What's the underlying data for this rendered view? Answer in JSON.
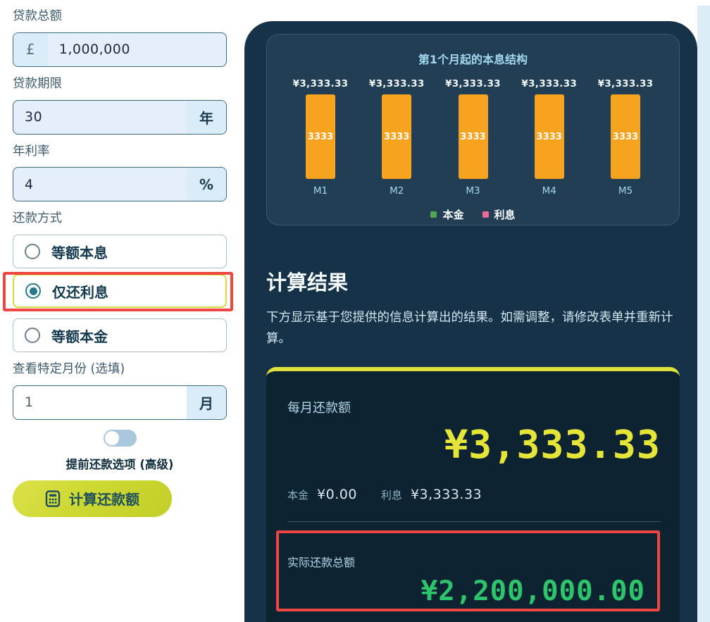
{
  "form": {
    "loan_amount": {
      "label": "贷款总额",
      "prefix": "£",
      "value": "1,000,000"
    },
    "loan_term": {
      "label": "贷款期限",
      "value": "30",
      "suffix": "年"
    },
    "interest_rate": {
      "label": "年利率",
      "value": "4",
      "suffix": "%"
    },
    "repayment_method": {
      "label": "还款方式",
      "options": [
        {
          "label": "等额本息",
          "selected": false
        },
        {
          "label": "仅还利息",
          "selected": true
        },
        {
          "label": "等额本金",
          "selected": false
        }
      ]
    },
    "specific_month": {
      "label": "查看特定月份 (选填)",
      "value": "1",
      "suffix": "月"
    },
    "advanced_toggle": {
      "label": "提前还款选项 (高级)",
      "state": "off"
    },
    "calculate_button_label": "计算还款额"
  },
  "chart_data": {
    "type": "bar",
    "title": "第1个月起的本息结构",
    "categories": [
      "M1",
      "M2",
      "M3",
      "M4",
      "M5"
    ],
    "series": [
      {
        "name": "本金",
        "color": "#53a653",
        "values": [
          0,
          0,
          0,
          0,
          0
        ]
      },
      {
        "name": "利息",
        "color": "#ec6a98",
        "values": [
          3333.33,
          3333.33,
          3333.33,
          3333.33,
          3333.33
        ]
      }
    ],
    "bar_total_labels": [
      "¥3,333.33",
      "¥3,333.33",
      "¥3,333.33",
      "¥3,333.33",
      "¥3,333.33"
    ],
    "bar_inner_labels": [
      "3333",
      "3333",
      "3333",
      "3333",
      "3333"
    ],
    "bar_color": "#f6a41f",
    "legend_position": "bottom",
    "grid": false,
    "ylim": [
      0,
      3333.33
    ]
  },
  "results": {
    "heading": "计算结果",
    "description": "下方显示基于您提供的信息计算出的结果。如需调整，请修改表单并重新计算。",
    "monthly": {
      "label": "每月还款额",
      "value": "¥3,333.33"
    },
    "breakdown": {
      "principal_label": "本金",
      "principal_value": "¥0.00",
      "interest_label": "利息",
      "interest_value": "¥3,333.33"
    },
    "total": {
      "label": "实际还款总额",
      "value": "¥2,200,000.00"
    }
  },
  "colors": {
    "panel_bg": "#163248",
    "chart_card_bg": "#223e54",
    "results_card_bg": "#0d2332",
    "accent_yellow": "#e4e538",
    "button_yellow_green": "#c9d62f",
    "accent_green": "#2dc56b",
    "bar_orange": "#f6a41f",
    "legend_green": "#53a653",
    "legend_pink": "#ec6a98",
    "annotation_red": "#f04642",
    "radio_teal": "#27798e",
    "input_autofill_blue": "#e5eefb"
  }
}
